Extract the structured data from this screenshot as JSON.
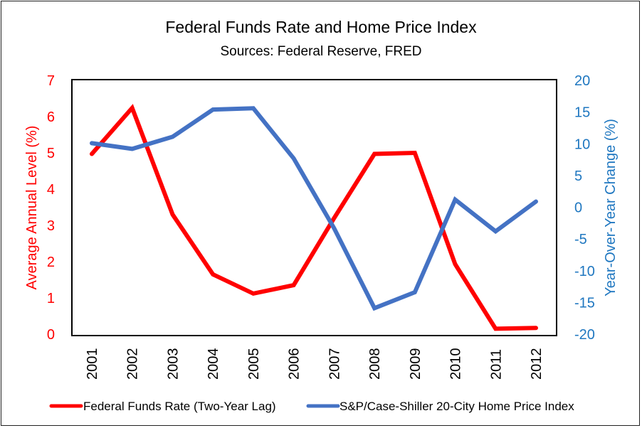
{
  "chart_data": {
    "type": "line",
    "title": "Federal Funds Rate and Home Price Index",
    "subtitle": "Sources: Federal Reserve, FRED",
    "categories": [
      "2001",
      "2002",
      "2003",
      "2004",
      "2005",
      "2006",
      "2007",
      "2008",
      "2009",
      "2010",
      "2011",
      "2012"
    ],
    "y_left": {
      "label": "Average Annual Level (%)",
      "range": [
        0,
        7
      ],
      "ticks": [
        "0",
        "1",
        "2",
        "3",
        "4",
        "5",
        "6",
        "7"
      ],
      "color": "#ff0000"
    },
    "y_right": {
      "label": "Year-Over-Year Change (%)",
      "range": [
        -20,
        20
      ],
      "ticks": [
        "-20",
        "-15",
        "-10",
        "-5",
        "0",
        "5",
        "10",
        "15",
        "20"
      ],
      "color": "#1f77c0"
    },
    "series": [
      {
        "name": "Federal Funds Rate (Two-Year Lag)",
        "axis": "left",
        "color": "#ff0000",
        "values": [
          4.97,
          6.24,
          3.3,
          1.65,
          1.12,
          1.35,
          3.2,
          4.97,
          5.0,
          1.93,
          0.15,
          0.17
        ]
      },
      {
        "name": "S&P/Case-Shiller 20-City Home Price Index",
        "axis": "right",
        "color": "#4472c4",
        "values": [
          10.1,
          9.2,
          11.1,
          15.4,
          15.6,
          7.7,
          -3.3,
          -15.9,
          -13.4,
          1.2,
          -3.8,
          0.9
        ]
      }
    ],
    "grid": false,
    "legend_position": "bottom"
  }
}
